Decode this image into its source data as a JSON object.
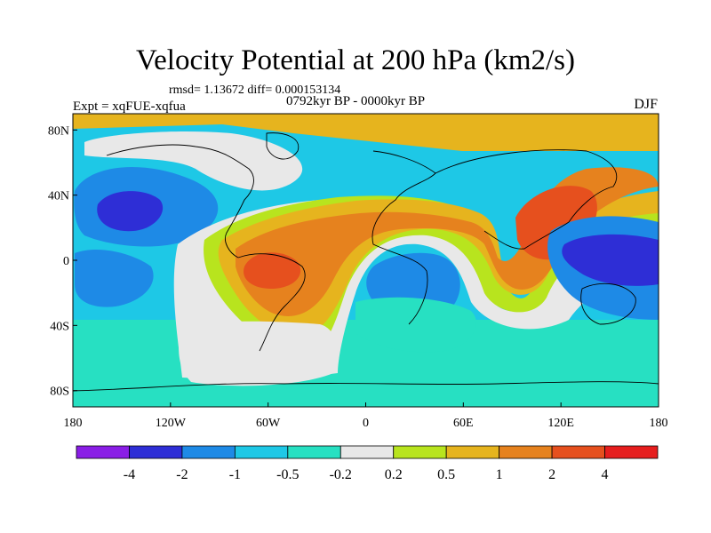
{
  "title": "Velocity Potential at 200 hPa (km2/s)",
  "stats": "rmsd= 1.13672 diff= 0.000153134",
  "period": "0792kyr BP - 0000kyr BP",
  "experiment": "Expt = xqFUE-xqfua",
  "season": "DJF",
  "lat_ticks": [
    {
      "label": "80N",
      "lat": 80
    },
    {
      "label": "40N",
      "lat": 40
    },
    {
      "label": "0",
      "lat": 0
    },
    {
      "label": "40S",
      "lat": -40
    },
    {
      "label": "80S",
      "lat": -80
    }
  ],
  "lon_ticks": [
    {
      "label": "180",
      "lon": -180
    },
    {
      "label": "120W",
      "lon": -120
    },
    {
      "label": "60W",
      "lon": -60
    },
    {
      "label": "0",
      "lon": 0
    },
    {
      "label": "60E",
      "lon": 60
    },
    {
      "label": "120E",
      "lon": 120
    },
    {
      "label": "180",
      "lon": 180
    }
  ],
  "colorbar": {
    "labels": [
      "-4",
      "-2",
      "-1",
      "-0.5",
      "-0.2",
      "0.2",
      "0.5",
      "1",
      "2",
      "4"
    ],
    "colors": [
      "#8a1ee6",
      "#2e2ed6",
      "#1e8ae6",
      "#1ec8e6",
      "#27e0c2",
      "#e8e8e8",
      "#b8e41e",
      "#e6b41e",
      "#e6821e",
      "#e6501e",
      "#e61e1e"
    ]
  },
  "palette": {
    "deep_blue": "#2e2ed6",
    "blue": "#1e8ae6",
    "cyan": "#1ec8e6",
    "teal": "#27e0c2",
    "neutral": "#e8e8e8",
    "yellow_green": "#b8e41e",
    "gold": "#e6b41e",
    "orange": "#e6821e",
    "red_orange": "#e6501e"
  }
}
